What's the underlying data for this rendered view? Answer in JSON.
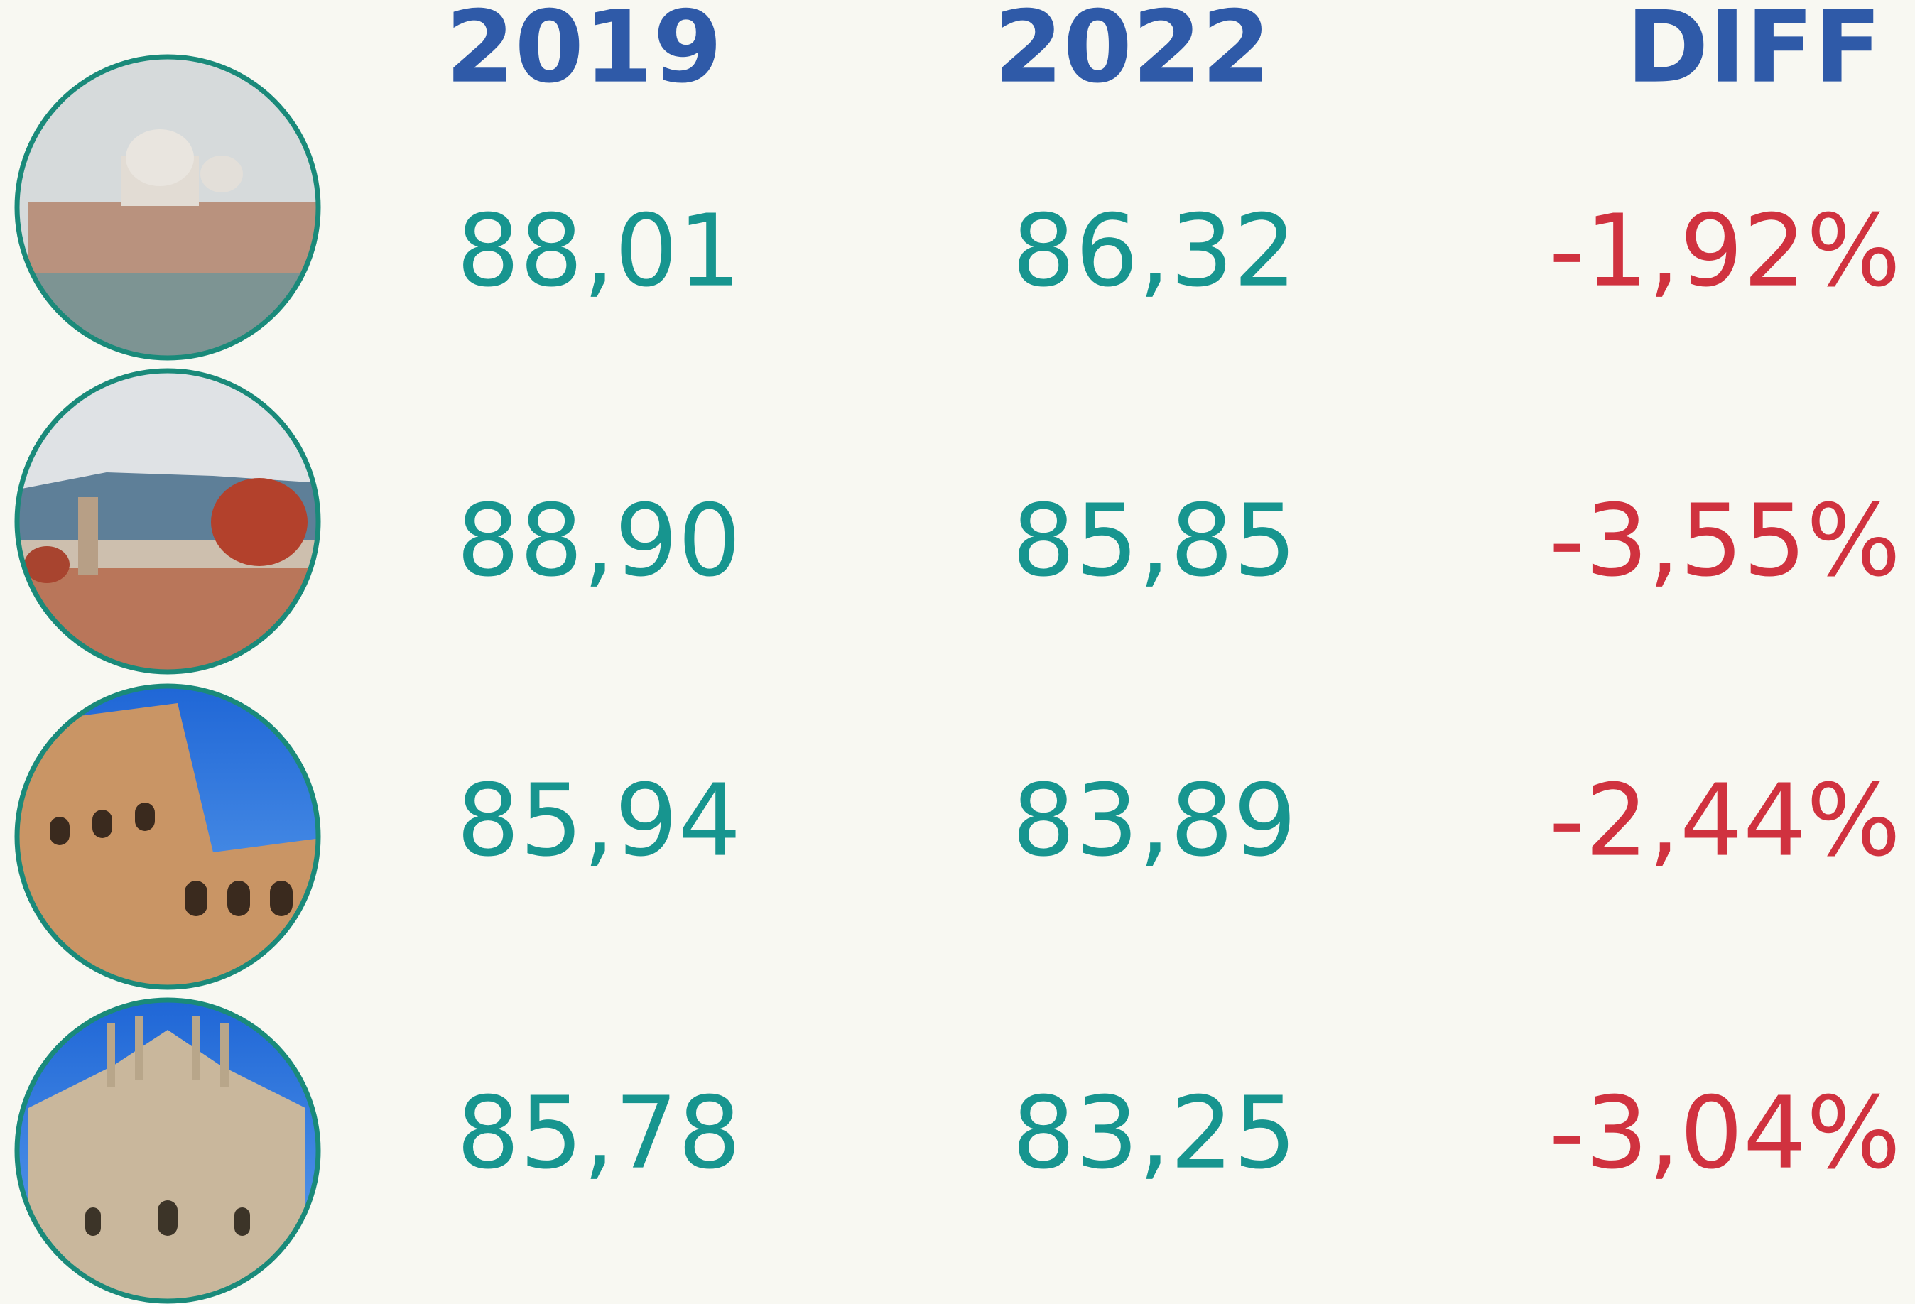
{
  "table": {
    "header": [
      "2019",
      "2022",
      "DIFF"
    ],
    "rows": [
      [
        "88,01",
        "86,32",
        "-1,92%"
      ],
      [
        "88,90",
        "85,85",
        "-3,55%"
      ],
      [
        "85,94",
        "83,89",
        "-2,44%"
      ],
      [
        "85,78",
        "83,25",
        "-3,04%"
      ]
    ]
  }
}
